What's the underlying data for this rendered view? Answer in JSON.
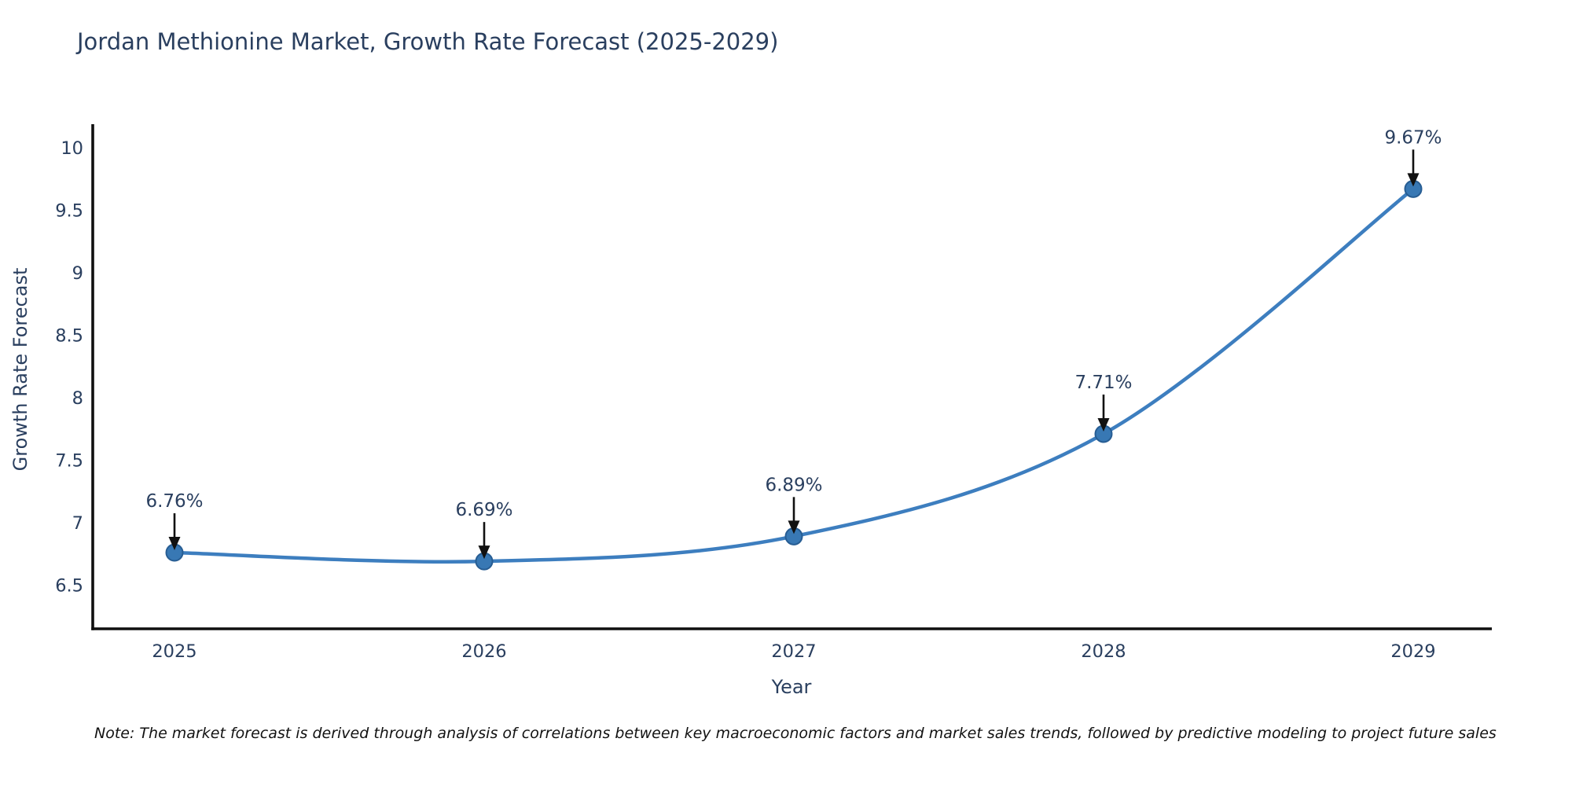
{
  "title": "Jordan Methionine Market, Growth Rate Forecast (2025-2029)",
  "note": "Note: The market forecast is derived through analysis of correlations between key macroeconomic factors and market sales trends, followed by predictive modeling to project future sales",
  "chart_data": {
    "type": "line",
    "x": [
      2025,
      2026,
      2027,
      2028,
      2029
    ],
    "series": [
      {
        "name": "Growth Rate Forecast",
        "values": [
          6.76,
          6.69,
          6.89,
          7.71,
          9.67
        ]
      }
    ],
    "point_labels": [
      "6.76%",
      "6.69%",
      "6.89%",
      "7.71%",
      "9.67%"
    ],
    "title": "Jordan Methionine Market, Growth Rate Forecast (2025-2029)",
    "xlabel": "Year",
    "ylabel": "Growth Rate Forecast",
    "xtick_labels": [
      "2025",
      "2026",
      "2027",
      "2028",
      "2029"
    ],
    "ytick_values": [
      6.5,
      7,
      7.5,
      8,
      8.5,
      9,
      9.5,
      10
    ],
    "ytick_labels": [
      "6.5",
      "7",
      "7.5",
      "8",
      "8.5",
      "9",
      "9.5",
      "10"
    ],
    "ylim": [
      6.15,
      10.1
    ],
    "line_shape": "spline",
    "grid": false,
    "legend_position": "none",
    "colors": {
      "line": "#3d7ebf",
      "marker_fill": "#3878b4",
      "marker_edge": "#275d93",
      "axis": "#0f0f0f",
      "text": "#2a3f5f",
      "annotation_arrow": "#111111"
    }
  }
}
